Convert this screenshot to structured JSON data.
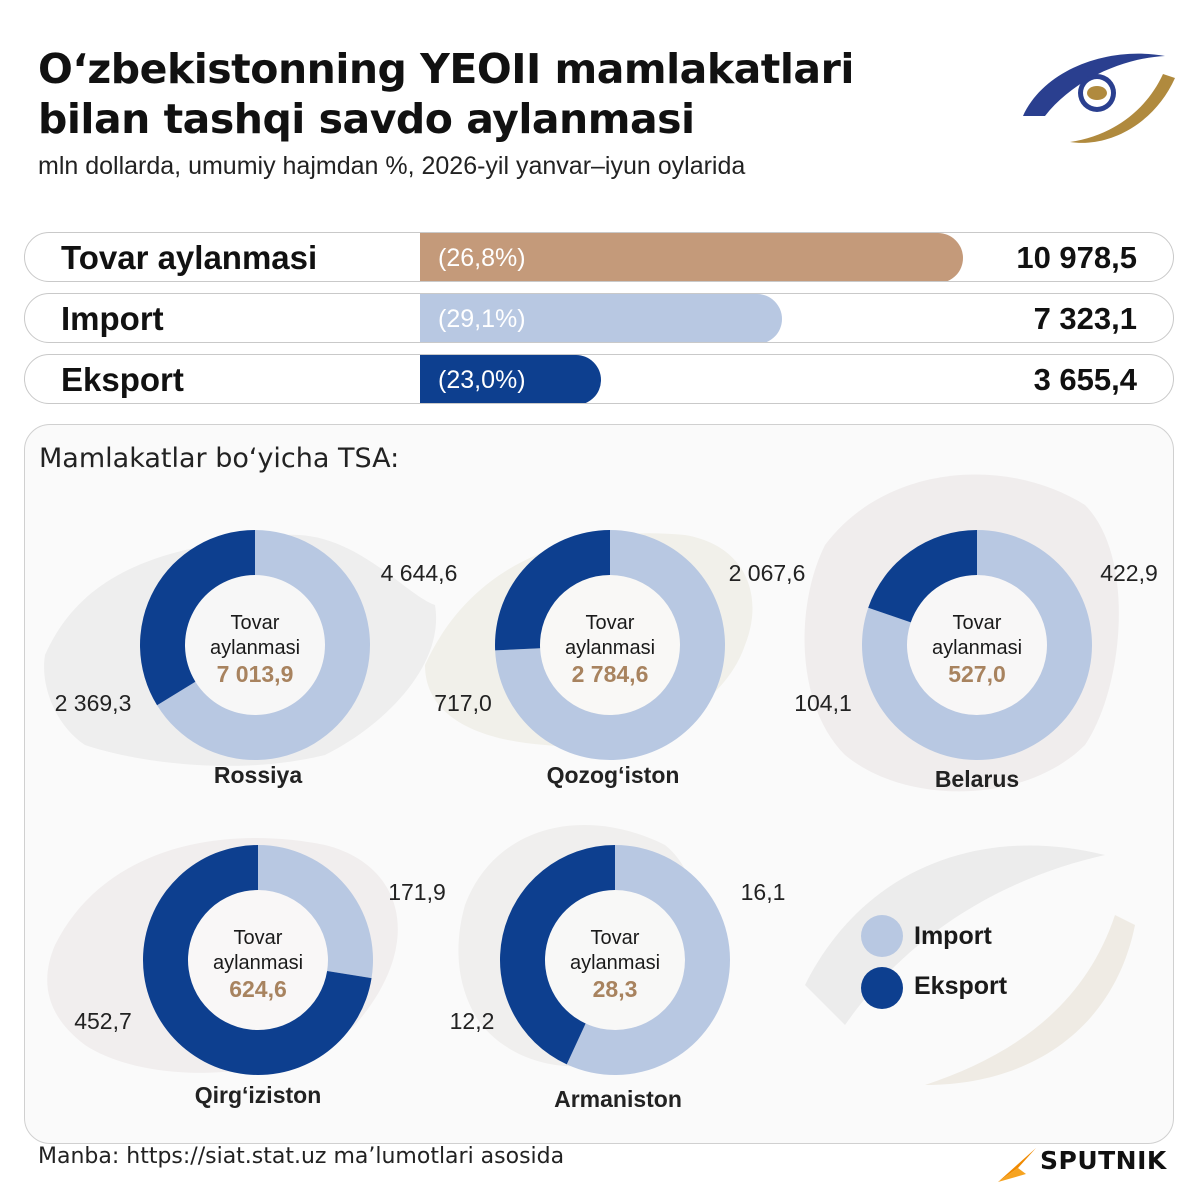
{
  "header": {
    "title_line1": "O‘zbekistonning YEOII mamlakatlari",
    "title_line2": "bilan tashqi savdo aylanmasi",
    "subtitle": "mln dollarda, umumiy hajmdan %, 2026-yil yanvar–iyun oylarida"
  },
  "summary": [
    {
      "label": "Tovar aylanmasi",
      "pct": "(26,8%)",
      "value": "10 978,5",
      "bar_fraction": 1.0,
      "color": "#c49a7a"
    },
    {
      "label": "Import",
      "pct": "(29,1%)",
      "value": "7 323,1",
      "bar_fraction": 0.667,
      "color": "#b8c8e2"
    },
    {
      "label": "Eksport",
      "pct": "(23,0%)",
      "value": "3 655,4",
      "bar_fraction": 0.333,
      "color": "#0d3f8f"
    }
  ],
  "panel": {
    "title": "Mamlakatlar bo‘yicha TSA:"
  },
  "chart_data": {
    "type": "donut",
    "title": "Mamlakatlar bo‘yicha TSA:",
    "center_label_line1": "Tovar",
    "center_label_line2": "aylanmasi",
    "series_names": [
      "Import",
      "Eksport"
    ],
    "countries": [
      {
        "name": "Rossiya",
        "total": "7 013,9",
        "import": 4644.6,
        "export": 2369.3,
        "import_label": "4 644,6",
        "export_label": "2 369,3"
      },
      {
        "name": "Qozog‘iston",
        "total": "2 784,6",
        "import": 2067.6,
        "export": 717.0,
        "import_label": "2 067,6",
        "export_label": "717,0"
      },
      {
        "name": "Belarus",
        "total": "527,0",
        "import": 422.9,
        "export": 104.1,
        "import_label": "422,9",
        "export_label": "104,1"
      },
      {
        "name": "Qirg‘iziston",
        "total": "624,6",
        "import": 171.9,
        "export": 452.7,
        "import_label": "171,9",
        "export_label": "452,7"
      },
      {
        "name": "Armaniston",
        "total": "28,3",
        "import": 16.1,
        "export": 12.2,
        "import_label": "16,1",
        "export_label": "12,2"
      }
    ]
  },
  "legend": [
    {
      "label": "Import",
      "color": "#b8c8e2"
    },
    {
      "label": "Eksport",
      "color": "#0d3f8f"
    }
  ],
  "colors": {
    "import": "#b8c8e2",
    "export": "#0d3f8f",
    "total_text": "#a8835f",
    "turnover": "#c49a7a"
  },
  "footer": {
    "source": "Manba: https://siat.stat.uz ma’lumotlari asosida",
    "brand": "SPUTNIK"
  }
}
